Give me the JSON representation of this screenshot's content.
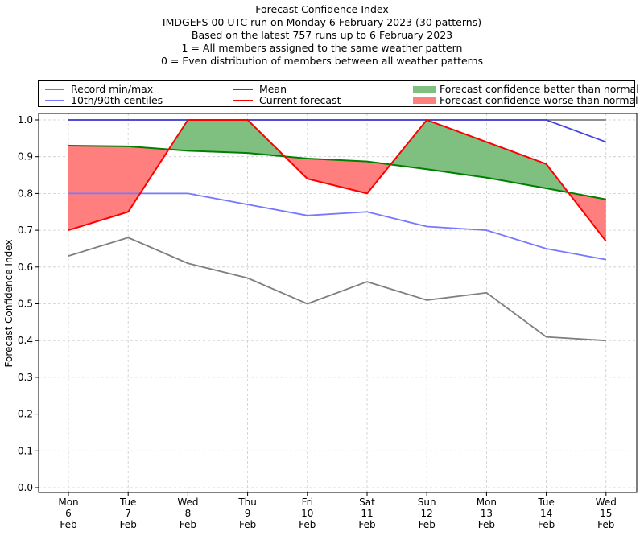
{
  "chart_data": {
    "type": "line",
    "title_lines": [
      "Forecast Confidence Index",
      "IMDGEFS 00 UTC run on Monday 6 February 2023 (30 patterns)",
      "Based on the latest 757 runs up to 6 February 2023",
      "1 = All members assigned to the same weather pattern",
      "0 = Even distribution of members between all weather patterns"
    ],
    "ylabel": "Forecast Confidence Index",
    "xlabel": "",
    "ylim": [
      0.0,
      1.0
    ],
    "yticks": [
      "0.0",
      "0.1",
      "0.2",
      "0.3",
      "0.4",
      "0.5",
      "0.6",
      "0.7",
      "0.8",
      "0.9",
      "1.0"
    ],
    "ytick_values": [
      0,
      0.1,
      0.2,
      0.3,
      0.4,
      0.5,
      0.6,
      0.7,
      0.8,
      0.9,
      1.0
    ],
    "grid": true,
    "categories": [
      {
        "day": "Mon",
        "date": "6",
        "month": "Feb"
      },
      {
        "day": "Tue",
        "date": "7",
        "month": "Feb"
      },
      {
        "day": "Wed",
        "date": "8",
        "month": "Feb"
      },
      {
        "day": "Thu",
        "date": "9",
        "month": "Feb"
      },
      {
        "day": "Fri",
        "date": "10",
        "month": "Feb"
      },
      {
        "day": "Sat",
        "date": "11",
        "month": "Feb"
      },
      {
        "day": "Sun",
        "date": "12",
        "month": "Feb"
      },
      {
        "day": "Mon",
        "date": "13",
        "month": "Feb"
      },
      {
        "day": "Tue",
        "date": "14",
        "month": "Feb"
      },
      {
        "day": "Wed",
        "date": "15",
        "month": "Feb"
      }
    ],
    "series": [
      {
        "name": "Record max",
        "legend": "record",
        "color": "#7f7f7f",
        "values": [
          1.0,
          1.0,
          1.0,
          1.0,
          1.0,
          1.0,
          1.0,
          1.0,
          1.0,
          1.0
        ]
      },
      {
        "name": "Record min",
        "legend": "record",
        "color": "#7f7f7f",
        "values": [
          0.63,
          0.68,
          0.61,
          0.57,
          0.5,
          0.56,
          0.51,
          0.53,
          0.41,
          0.4
        ]
      },
      {
        "name": "90th centile",
        "legend": "centiles",
        "color": "#7777ff",
        "values": [
          1.0,
          1.0,
          1.0,
          1.0,
          1.0,
          1.0,
          1.0,
          1.0,
          1.0,
          0.94
        ]
      },
      {
        "name": "10th centile",
        "legend": "centiles",
        "color": "#7777ff",
        "values": [
          0.8,
          0.8,
          0.8,
          0.77,
          0.74,
          0.75,
          0.71,
          0.7,
          0.65,
          0.62
        ]
      },
      {
        "name": "Mean",
        "legend": "mean",
        "color": "#008000",
        "values": [
          0.93,
          0.928,
          0.916,
          0.91,
          0.895,
          0.887,
          0.866,
          0.843,
          0.814,
          0.784
        ]
      },
      {
        "name": "Current forecast",
        "legend": "current",
        "color": "#ff0000",
        "values": [
          0.7,
          0.75,
          1.0,
          1.0,
          0.84,
          0.8,
          1.0,
          0.94,
          0.88,
          0.67
        ]
      }
    ],
    "fill_better_color": "#7fbf7f",
    "fill_worse_color": "#ff7f7f",
    "legend_placement": "top",
    "legend": {
      "record": "Record min/max",
      "centiles": "10th/90th centiles",
      "mean": "Mean",
      "current": "Current forecast",
      "better": "Forecast confidence better than normal",
      "worse": "Forecast confidence worse than normal"
    }
  }
}
